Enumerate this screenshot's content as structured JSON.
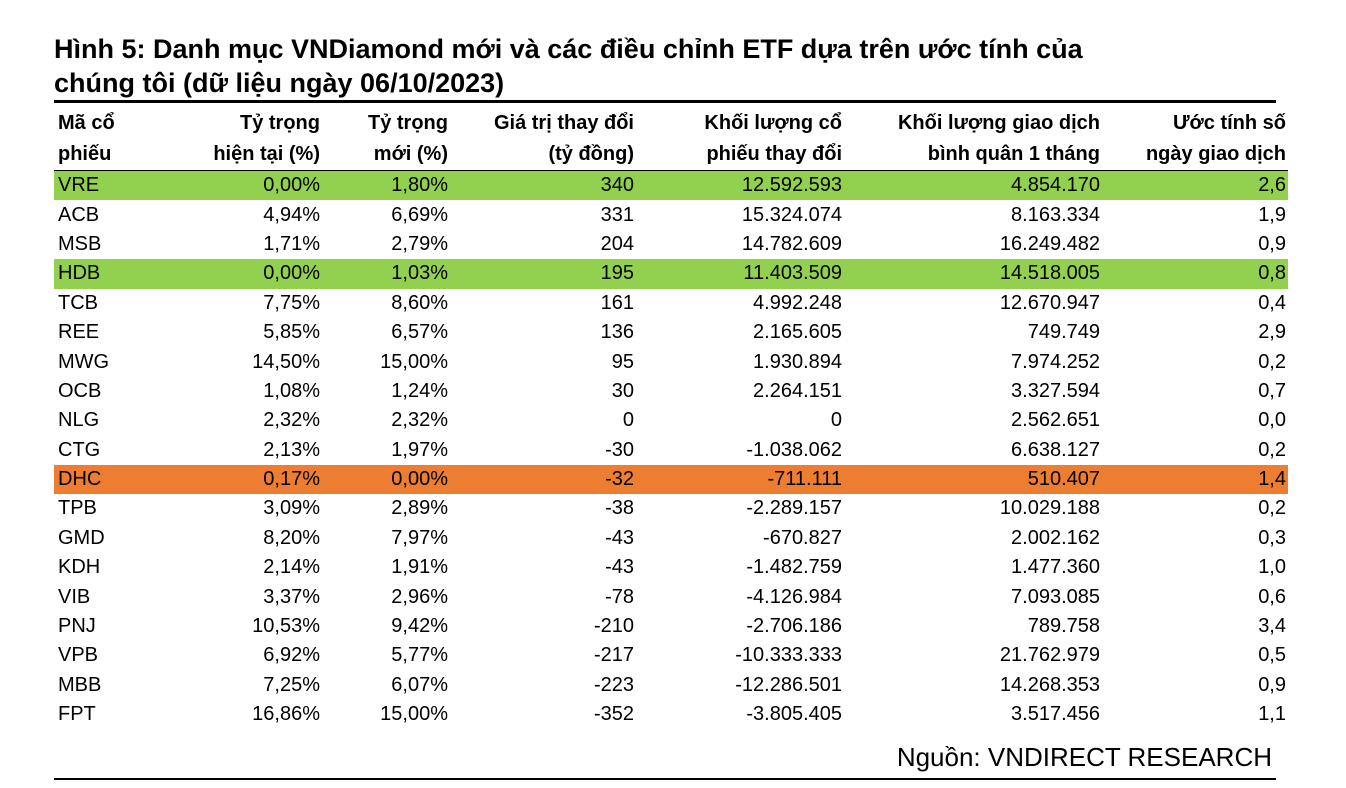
{
  "title": {
    "line1": "Hình 5: Danh mục VNDiamond mới và các điều chỉnh ETF dựa trên ước tính của",
    "line2": "chúng tôi (dữ liệu ngày 06/10/2023)"
  },
  "headers": [
    {
      "line1": "Mã cổ",
      "line2": "phiếu"
    },
    {
      "line1": "Tỷ trọng",
      "line2": "hiện tại (%)"
    },
    {
      "line1": "Tỷ trọng",
      "line2": "mới (%)"
    },
    {
      "line1": "Giá trị thay đổi",
      "line2": "(tỷ đồng)"
    },
    {
      "line1": "Khối lượng cổ",
      "line2": "phiếu thay đổi"
    },
    {
      "line1": "Khối lượng giao dịch",
      "line2": "bình quân 1 tháng"
    },
    {
      "line1": "Ước tính số",
      "line2": "ngày giao dịch"
    }
  ],
  "highlight_colors": {
    "green": "#92d050",
    "orange": "#ed7d31"
  },
  "rows": [
    {
      "cells": [
        "VRE",
        "0,00%",
        "1,80%",
        "340",
        "12.592.593",
        "4.854.170",
        "2,6"
      ],
      "highlight": "green"
    },
    {
      "cells": [
        "ACB",
        "4,94%",
        "6,69%",
        "331",
        "15.324.074",
        "8.163.334",
        "1,9"
      ],
      "highlight": ""
    },
    {
      "cells": [
        "MSB",
        "1,71%",
        "2,79%",
        "204",
        "14.782.609",
        "16.249.482",
        "0,9"
      ],
      "highlight": ""
    },
    {
      "cells": [
        "HDB",
        "0,00%",
        "1,03%",
        "195",
        "11.403.509",
        "14.518.005",
        "0,8"
      ],
      "highlight": "green"
    },
    {
      "cells": [
        "TCB",
        "7,75%",
        "8,60%",
        "161",
        "4.992.248",
        "12.670.947",
        "0,4"
      ],
      "highlight": ""
    },
    {
      "cells": [
        "REE",
        "5,85%",
        "6,57%",
        "136",
        "2.165.605",
        "749.749",
        "2,9"
      ],
      "highlight": ""
    },
    {
      "cells": [
        "MWG",
        "14,50%",
        "15,00%",
        "95",
        "1.930.894",
        "7.974.252",
        "0,2"
      ],
      "highlight": ""
    },
    {
      "cells": [
        "OCB",
        "1,08%",
        "1,24%",
        "30",
        "2.264.151",
        "3.327.594",
        "0,7"
      ],
      "highlight": ""
    },
    {
      "cells": [
        "NLG",
        "2,32%",
        "2,32%",
        "0",
        "0",
        "2.562.651",
        "0,0"
      ],
      "highlight": ""
    },
    {
      "cells": [
        "CTG",
        "2,13%",
        "1,97%",
        "-30",
        "-1.038.062",
        "6.638.127",
        "0,2"
      ],
      "highlight": ""
    },
    {
      "cells": [
        "DHC",
        "0,17%",
        "0,00%",
        "-32",
        "-711.111",
        "510.407",
        "1,4"
      ],
      "highlight": "orange"
    },
    {
      "cells": [
        "TPB",
        "3,09%",
        "2,89%",
        "-38",
        "-2.289.157",
        "10.029.188",
        "0,2"
      ],
      "highlight": ""
    },
    {
      "cells": [
        "GMD",
        "8,20%",
        "7,97%",
        "-43",
        "-670.827",
        "2.002.162",
        "0,3"
      ],
      "highlight": ""
    },
    {
      "cells": [
        "KDH",
        "2,14%",
        "1,91%",
        "-43",
        "-1.482.759",
        "1.477.360",
        "1,0"
      ],
      "highlight": ""
    },
    {
      "cells": [
        "VIB",
        "3,37%",
        "2,96%",
        "-78",
        "-4.126.984",
        "7.093.085",
        "0,6"
      ],
      "highlight": ""
    },
    {
      "cells": [
        "PNJ",
        "10,53%",
        "9,42%",
        "-210",
        "-2.706.186",
        "789.758",
        "3,4"
      ],
      "highlight": ""
    },
    {
      "cells": [
        "VPB",
        "6,92%",
        "5,77%",
        "-217",
        "-10.333.333",
        "21.762.979",
        "0,5"
      ],
      "highlight": ""
    },
    {
      "cells": [
        "MBB",
        "7,25%",
        "6,07%",
        "-223",
        "-12.286.501",
        "14.268.353",
        "0,9"
      ],
      "highlight": ""
    },
    {
      "cells": [
        "FPT",
        "16,86%",
        "15,00%",
        "-352",
        "-3.805.405",
        "3.517.456",
        "1,1"
      ],
      "highlight": ""
    }
  ],
  "source": "Nguồn: VNDIRECT RESEARCH"
}
